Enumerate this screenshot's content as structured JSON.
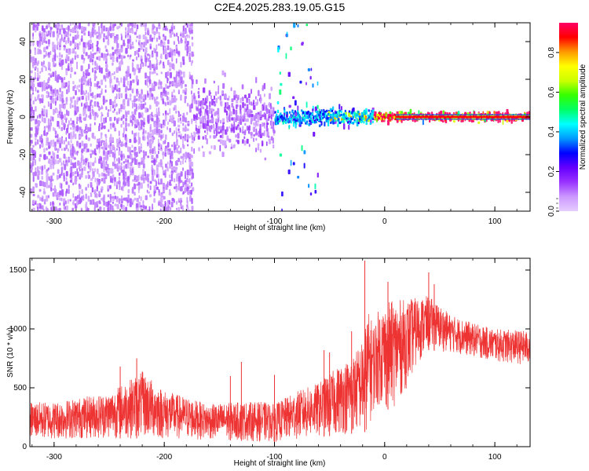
{
  "figure_title": "C2E4.2025.283.19.05.G15",
  "colors": {
    "snr_line": "#ee3333",
    "spectrogram_background": "#ffffff",
    "colorbar_stops": [
      "#e6ccff",
      "#cc99ff",
      "#9933ff",
      "#6600ff",
      "#0000ff",
      "#0099ff",
      "#00ffff",
      "#00ff66",
      "#33ff00",
      "#ccff00",
      "#ffff00",
      "#ff9900",
      "#ff0000",
      "#ff0066"
    ]
  },
  "chart_data": [
    {
      "type": "heatmap",
      "title": "",
      "xlabel": "Height of straight line (km)",
      "ylabel": "Frequency (Hz)",
      "xlim": [
        -322,
        132
      ],
      "ylim": [
        -50,
        50
      ],
      "xticks": [
        -300,
        -200,
        -100,
        0,
        100
      ],
      "xtick_labels": [
        "-300",
        "-200",
        "-100",
        "0",
        "100"
      ],
      "yticks": [
        -40,
        -20,
        0,
        20,
        40
      ],
      "ytick_labels": [
        "-40",
        "-20",
        "0",
        "20",
        "40"
      ],
      "colorbar": {
        "label": "Normalized spectral amplitude",
        "range": [
          0,
          0.95
        ],
        "ticks": [
          0.0,
          0.2,
          0.4,
          0.6,
          0.8
        ],
        "tick_labels": [
          "0.0",
          "0.2",
          "0.4",
          "0.6",
          "0.8"
        ]
      },
      "regions": [
        {
          "x_range": [
            -322,
            -175
          ],
          "freq_spread_hz": 50,
          "typical_amplitude": 0.1,
          "description": "broadband noise"
        },
        {
          "x_range": [
            -175,
            -100
          ],
          "freq_spread_hz": 15,
          "typical_amplitude": 0.12,
          "description": "emerging signal"
        },
        {
          "x_range": [
            -100,
            -10
          ],
          "freq_spread_hz": 4,
          "typical_amplitude": 0.4,
          "description": "signal band near 0 Hz"
        },
        {
          "x_range": [
            -10,
            132
          ],
          "freq_spread_hz": 2,
          "typical_amplitude": 0.85,
          "description": "strong narrowband carrier at 0 Hz"
        }
      ]
    },
    {
      "type": "line",
      "title": "",
      "xlabel": "Height of straight line (km)",
      "ylabel": "SNR (10 * v/v)",
      "xlim": [
        -322,
        132
      ],
      "ylim": [
        0,
        1600
      ],
      "xticks": [
        -300,
        -200,
        -100,
        0,
        100
      ],
      "xtick_labels": [
        "-300",
        "-200",
        "-100",
        "0",
        "100"
      ],
      "yticks": [
        0,
        500,
        1000,
        1500
      ],
      "ytick_labels": [
        "0",
        "500",
        "1000",
        "1500"
      ],
      "series": [
        {
          "name": "SNR",
          "envelope_x": [
            -322,
            -300,
            -250,
            -220,
            -200,
            -160,
            -130,
            -110,
            -100,
            -80,
            -60,
            -40,
            -30,
            -20,
            -15,
            -10,
            -5,
            0,
            10,
            20,
            30,
            40,
            60,
            80,
            100,
            120,
            132
          ],
          "envelope_low": [
            60,
            60,
            70,
            70,
            60,
            60,
            50,
            40,
            40,
            60,
            80,
            100,
            110,
            120,
            130,
            300,
            350,
            300,
            350,
            500,
            700,
            820,
            800,
            760,
            720,
            700,
            690
          ],
          "envelope_high": [
            380,
            380,
            460,
            640,
            480,
            360,
            380,
            380,
            360,
            470,
            540,
            700,
            760,
            900,
            1150,
            1050,
            1180,
            1220,
            1250,
            1250,
            1270,
            1280,
            1120,
            1050,
            1000,
            990,
            980
          ],
          "spikes": [
            {
              "x": -18,
              "y": 1580
            },
            {
              "x": 3,
              "y": 1400
            },
            {
              "x": 40,
              "y": 1480
            },
            {
              "x": -225,
              "y": 750
            },
            {
              "x": -130,
              "y": 720
            },
            {
              "x": -100,
              "y": 610
            },
            {
              "x": -50,
              "y": 800
            },
            {
              "x": -30,
              "y": 980
            },
            {
              "x": -55,
              "y": 820
            },
            {
              "x": -140,
              "y": 600
            },
            {
              "x": -240,
              "y": 680
            },
            {
              "x": 45,
              "y": 1380
            }
          ]
        }
      ]
    }
  ]
}
